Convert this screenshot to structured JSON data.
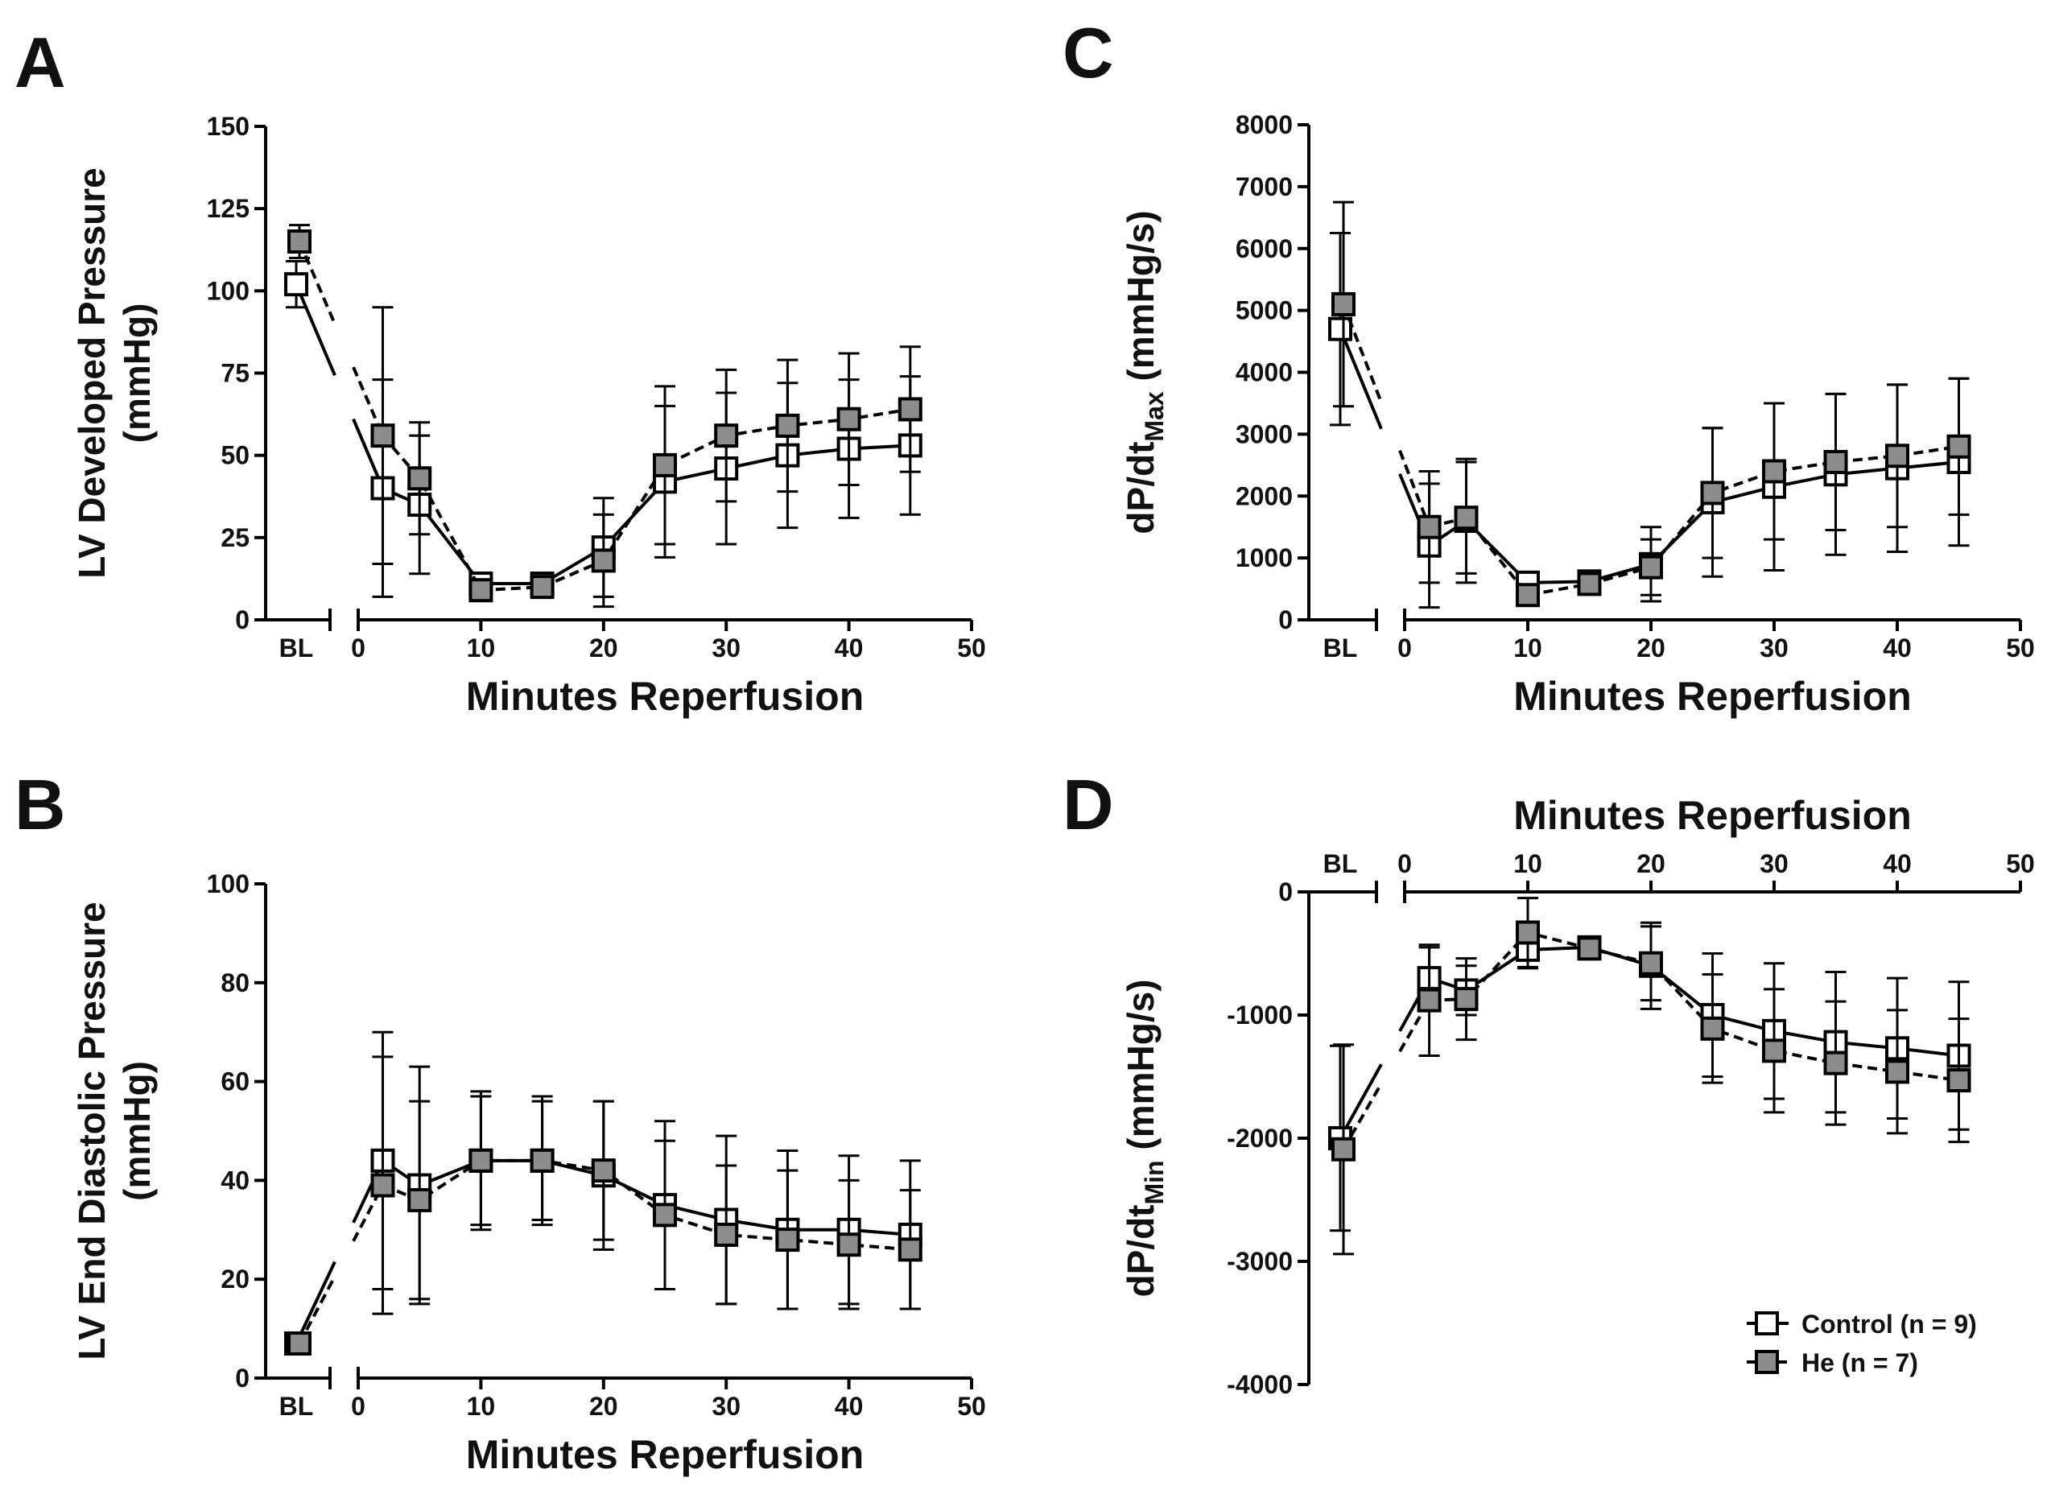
{
  "figure": {
    "legend": {
      "entries": [
        {
          "label": "Control (n = 9)",
          "marker": "open-square",
          "line": "solid",
          "fill": "#ffffff"
        },
        {
          "label": "He (n = 7)",
          "marker": "filled-square",
          "line": "dashed",
          "fill": "#8c8c8c"
        }
      ]
    }
  },
  "chart_data": [
    {
      "panel": "A",
      "type": "line",
      "ylabel": "LV Developed Pressure (mmHg)",
      "xlabel": "Minutes Reperfusion",
      "baseline_label": "BL",
      "x_axis_position": "bottom",
      "yticks": [
        0,
        25,
        50,
        75,
        100,
        125,
        150
      ],
      "ylim": [
        0,
        150
      ],
      "xticks": [
        0,
        10,
        20,
        30,
        40,
        50
      ],
      "xlim": [
        0,
        50
      ],
      "x": [
        2,
        5,
        10,
        15,
        20,
        25,
        30,
        35,
        40,
        45
      ],
      "series": [
        {
          "name": "Control (n = 9)",
          "bl": 102,
          "bl_err": 7,
          "values": [
            40,
            35,
            11,
            11,
            22,
            42,
            46,
            50,
            52,
            53
          ],
          "errors": [
            33,
            21,
            3,
            2,
            15,
            23,
            23,
            22,
            21,
            21
          ]
        },
        {
          "name": "He (n = 7)",
          "bl": 115,
          "bl_err": 5,
          "values": [
            56,
            43,
            9,
            10,
            18,
            47,
            56,
            59,
            61,
            64
          ],
          "errors": [
            39,
            17,
            3,
            2,
            14,
            24,
            20,
            20,
            20,
            19
          ]
        }
      ]
    },
    {
      "panel": "B",
      "type": "line",
      "ylabel": "LV End Diastolic Pressure (mmHg)",
      "xlabel": "Minutes Reperfusion",
      "baseline_label": "BL",
      "x_axis_position": "bottom",
      "yticks": [
        0,
        20,
        40,
        60,
        80,
        100
      ],
      "ylim": [
        0,
        100
      ],
      "xticks": [
        0,
        10,
        20,
        30,
        40,
        50
      ],
      "xlim": [
        0,
        50
      ],
      "x": [
        2,
        5,
        10,
        15,
        20,
        25,
        30,
        35,
        40,
        45
      ],
      "series": [
        {
          "name": "Control (n = 9)",
          "bl": 7,
          "bl_err": 1,
          "values": [
            44,
            39,
            44,
            44,
            41,
            35,
            32,
            30,
            30,
            29
          ],
          "errors": [
            26,
            24,
            13,
            12,
            15,
            17,
            17,
            16,
            15,
            15
          ]
        },
        {
          "name": "He (n = 7)",
          "bl": 7,
          "bl_err": 1,
          "values": [
            39,
            36,
            44,
            44,
            42,
            33,
            29,
            28,
            27,
            26
          ],
          "errors": [
            26,
            20,
            14,
            13,
            14,
            15,
            14,
            14,
            13,
            12
          ]
        }
      ]
    },
    {
      "panel": "C",
      "type": "line",
      "ylabel": "dP/dt Max (mmHg/s)",
      "ylabel_main": "dP/dt",
      "ylabel_sub": "Max",
      "ylabel_unit": " (mmHg/s)",
      "xlabel": "Minutes Reperfusion",
      "baseline_label": "BL",
      "x_axis_position": "bottom",
      "yticks": [
        0,
        1000,
        2000,
        3000,
        4000,
        5000,
        6000,
        7000,
        8000
      ],
      "ylim": [
        0,
        8000
      ],
      "xticks": [
        0,
        10,
        20,
        30,
        40,
        50
      ],
      "xlim": [
        0,
        50
      ],
      "x": [
        2,
        5,
        10,
        15,
        20,
        25,
        30,
        35,
        40,
        45
      ],
      "series": [
        {
          "name": "Control (n = 9)",
          "bl": 4700,
          "bl_err": 1550,
          "values": [
            1200,
            1600,
            600,
            620,
            900,
            1900,
            2150,
            2350,
            2450,
            2550
          ],
          "errors": [
            1000,
            1000,
            150,
            150,
            600,
            1200,
            1350,
            1300,
            1350,
            1350
          ]
        },
        {
          "name": "He (n = 7)",
          "bl": 5100,
          "bl_err": 1650,
          "values": [
            1500,
            1650,
            400,
            580,
            850,
            2050,
            2400,
            2550,
            2650,
            2800
          ],
          "errors": [
            900,
            900,
            150,
            120,
            450,
            1050,
            1100,
            1100,
            1150,
            1100
          ]
        }
      ]
    },
    {
      "panel": "D",
      "type": "line",
      "ylabel": "dP/dt Min (mmHg/s)",
      "ylabel_main": "dP/dt",
      "ylabel_sub": "Min",
      "ylabel_unit": " (mmHg/s)",
      "xlabel": "Minutes Reperfusion",
      "baseline_label": "BL",
      "x_axis_position": "top",
      "yticks": [
        0,
        -1000,
        -2000,
        -3000,
        -4000
      ],
      "ylim": [
        -4000,
        0
      ],
      "xticks": [
        0,
        10,
        20,
        30,
        40,
        50
      ],
      "xlim": [
        0,
        50
      ],
      "x": [
        2,
        5,
        10,
        15,
        20,
        25,
        30,
        35,
        40,
        45
      ],
      "series": [
        {
          "name": "Control (n = 9)",
          "bl": -2000,
          "bl_err": 750,
          "values": [
            -700,
            -800,
            -470,
            -450,
            -600,
            -1000,
            -1130,
            -1220,
            -1270,
            -1330
          ],
          "errors": [
            250,
            200,
            150,
            50,
            350,
            500,
            550,
            570,
            570,
            600
          ]
        },
        {
          "name": "He (n = 7)",
          "bl": -2090,
          "bl_err": 850,
          "values": [
            -880,
            -870,
            -330,
            -460,
            -580,
            -1110,
            -1290,
            -1390,
            -1460,
            -1530
          ],
          "errors": [
            450,
            330,
            280,
            40,
            300,
            440,
            500,
            500,
            500,
            500
          ]
        }
      ]
    }
  ]
}
